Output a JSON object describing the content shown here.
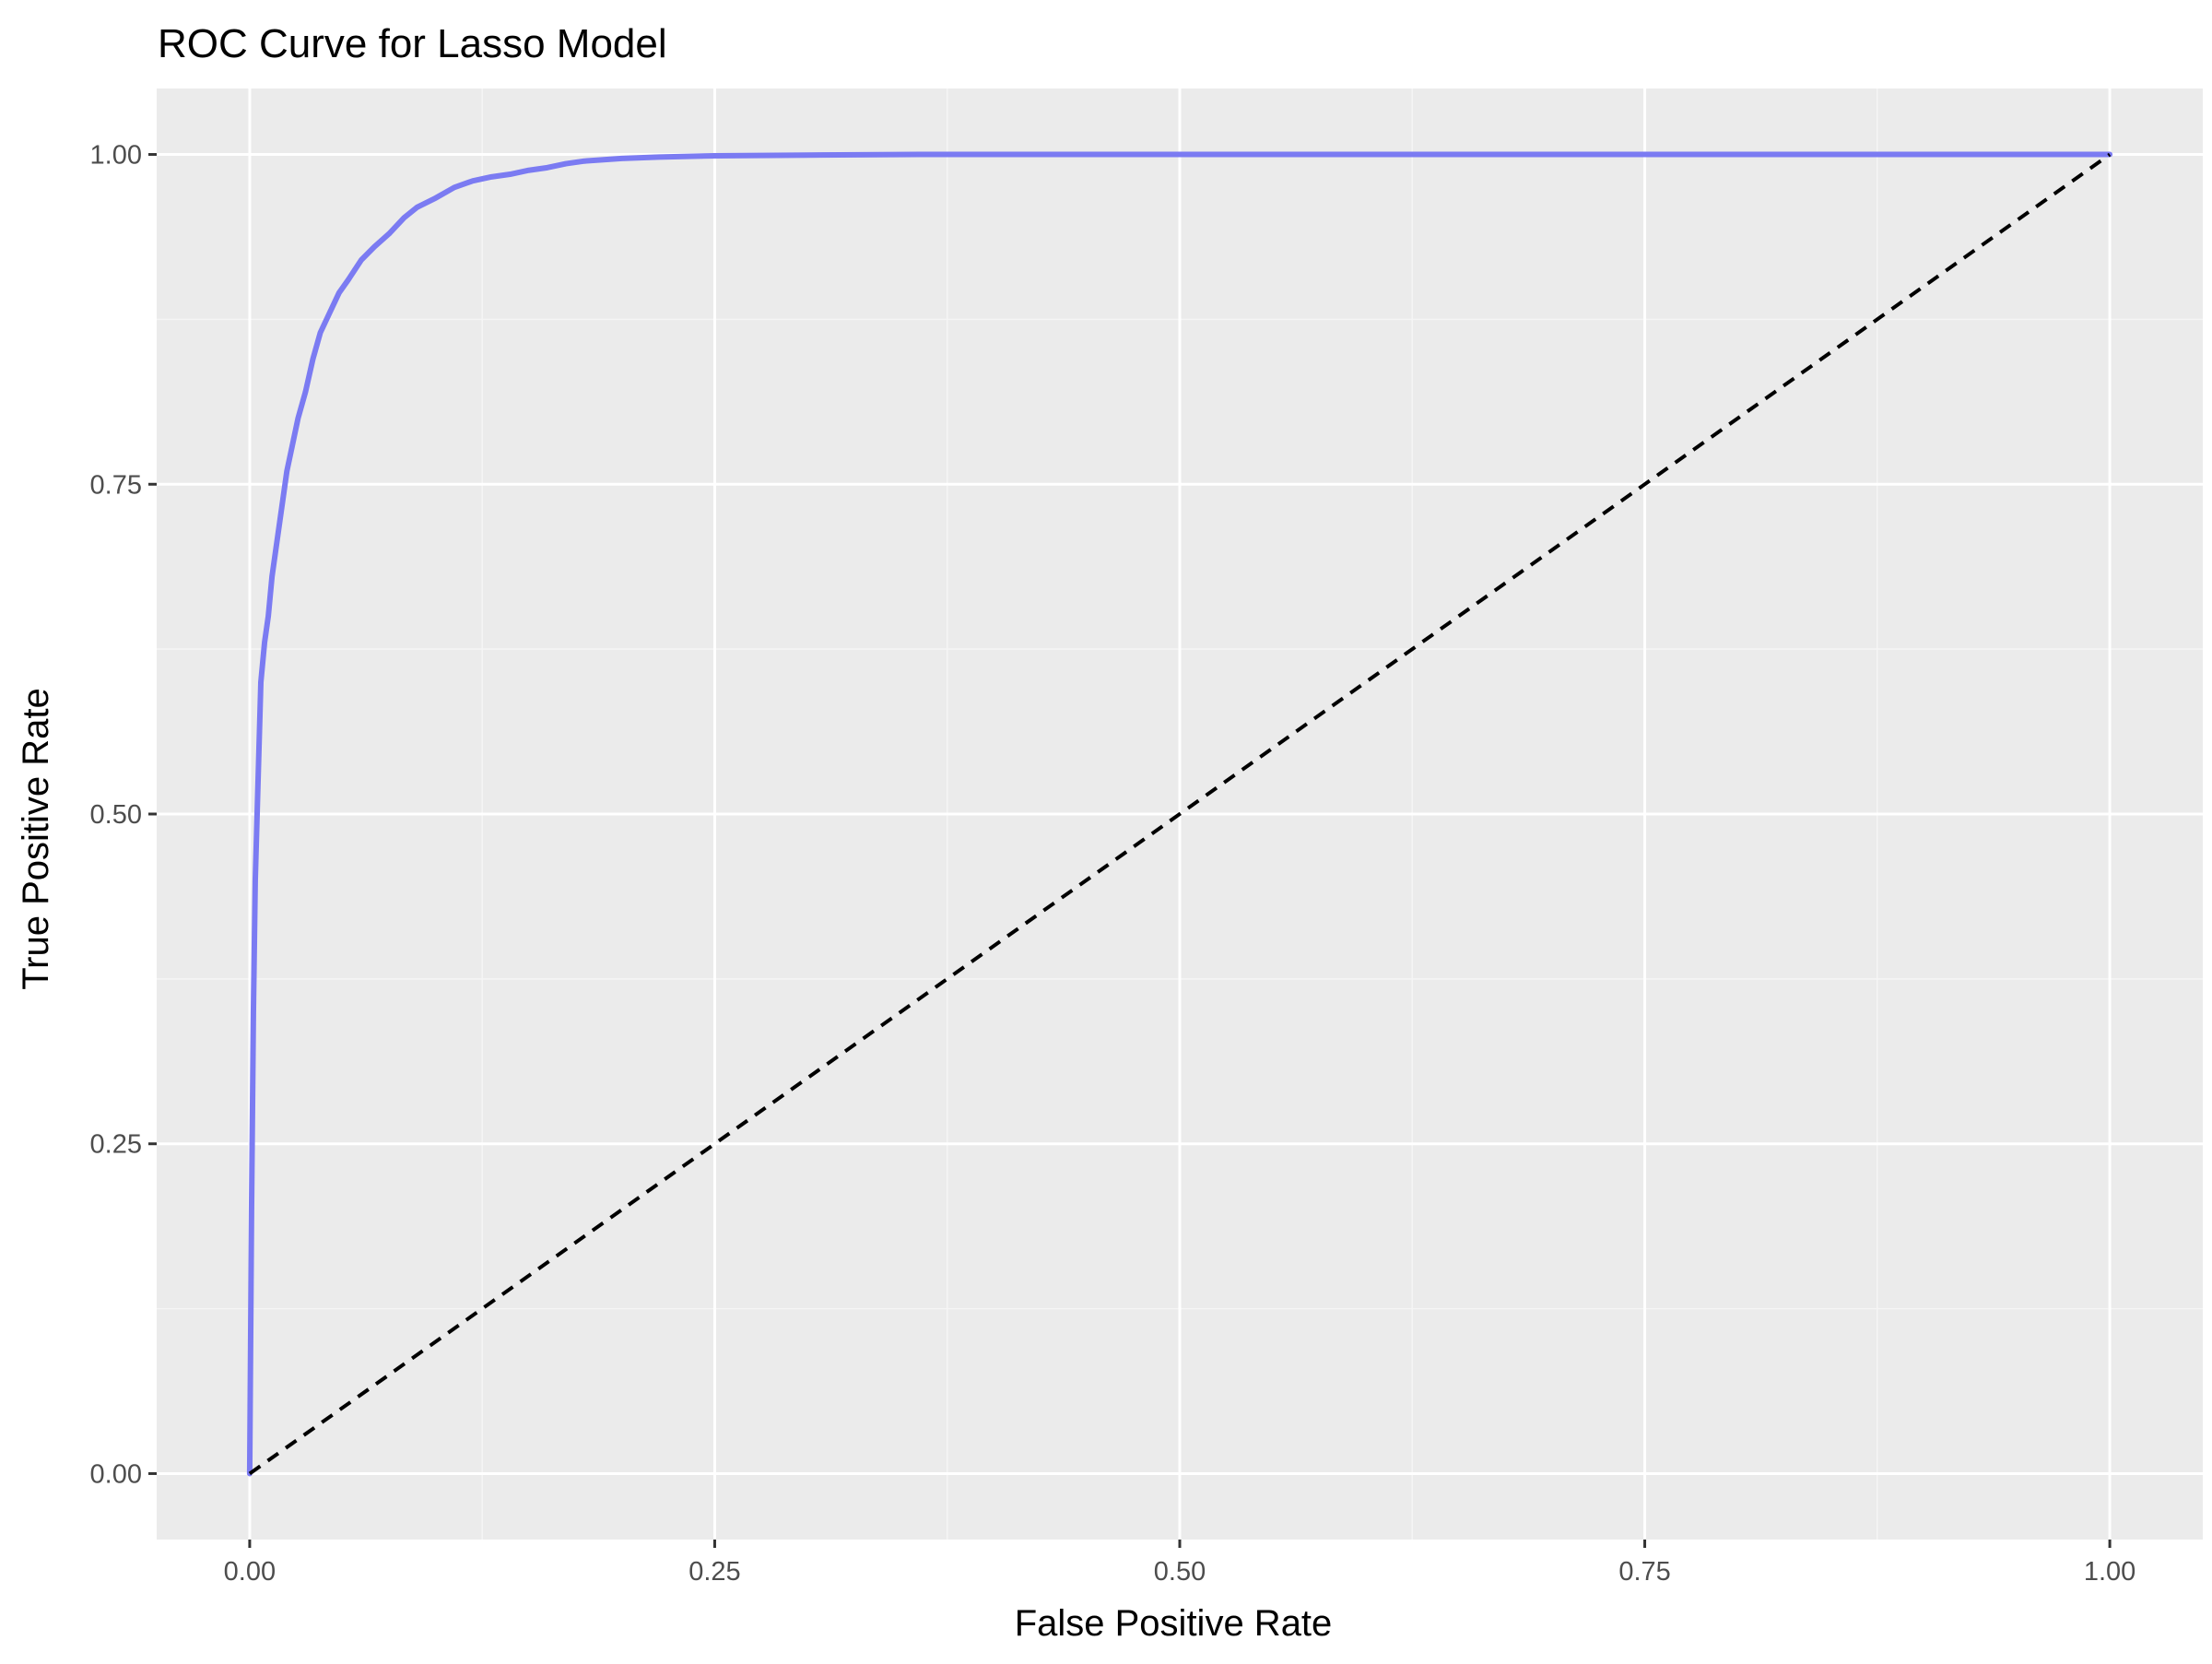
{
  "colors": {
    "panel_background": "#ebebeb",
    "grid_major": "#ffffff",
    "grid_minor": "#f5f5f5",
    "tick_mark": "#333333",
    "roc_curve": "#7b7bf2",
    "reference_line": "#000000"
  },
  "chart_data": {
    "type": "line",
    "title": "ROC Curve for Lasso Model",
    "xlabel": "False Positive Rate",
    "ylabel": "True Positive Rate",
    "xlim": [
      -0.05,
      1.05
    ],
    "ylim": [
      -0.05,
      1.05
    ],
    "grid": true,
    "x_ticks": [
      0,
      0.25,
      0.5,
      0.75,
      1
    ],
    "x_tick_labels": [
      "0.00",
      "0.25",
      "0.50",
      "0.75",
      "1.00"
    ],
    "y_ticks": [
      0,
      0.25,
      0.5,
      0.75,
      1
    ],
    "y_tick_labels": [
      "0.00",
      "0.25",
      "0.50",
      "0.75",
      "1.00"
    ],
    "series": [
      {
        "x": [
          0,
          0.001,
          0.002,
          0.003,
          0.004,
          0.005,
          0.006,
          0.008,
          0.01,
          0.012,
          0.015,
          0.018,
          0.02,
          0.023,
          0.026,
          0.03,
          0.034,
          0.038,
          0.043,
          0.048,
          0.053,
          0.06,
          0.067,
          0.075,
          0.083,
          0.09,
          0.1,
          0.11,
          0.12,
          0.13,
          0.14,
          0.15,
          0.16,
          0.17,
          0.18,
          0.2,
          0.22,
          0.25,
          0.3,
          0.36,
          0.5,
          0.75,
          1
        ],
        "y": [
          0,
          0.2,
          0.35,
          0.45,
          0.5,
          0.55,
          0.6,
          0.63,
          0.65,
          0.68,
          0.71,
          0.74,
          0.76,
          0.78,
          0.8,
          0.82,
          0.845,
          0.865,
          0.88,
          0.895,
          0.905,
          0.92,
          0.93,
          0.94,
          0.952,
          0.96,
          0.967,
          0.975,
          0.98,
          0.983,
          0.985,
          0.988,
          0.99,
          0.993,
          0.995,
          0.997,
          0.998,
          0.999,
          0.9995,
          1,
          1,
          1,
          1
        ]
      },
      {
        "x": [
          0,
          1
        ],
        "y": [
          0,
          1
        ]
      }
    ]
  }
}
